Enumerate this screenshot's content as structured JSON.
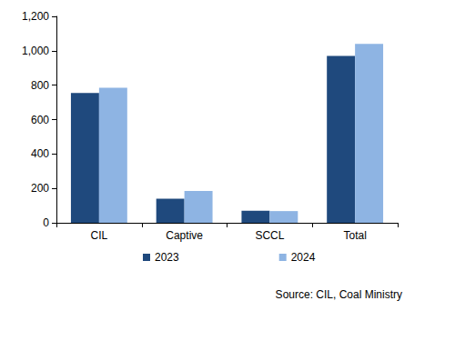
{
  "chart_data": {
    "type": "bar",
    "categories": [
      "CIL",
      "Captive",
      "SCCL",
      "Total"
    ],
    "series": [
      {
        "name": "2023",
        "color": "#1f497d",
        "values": [
          755,
          140,
          70,
          970
        ]
      },
      {
        "name": "2024",
        "color": "#8eb4e3",
        "values": [
          785,
          185,
          68,
          1040
        ]
      }
    ],
    "ylim": [
      0,
      1200
    ],
    "yticks": [
      0,
      200,
      400,
      600,
      800,
      {
        "value": 1000,
        "label": "1,000"
      },
      {
        "value": 1200,
        "label": "1,200"
      }
    ],
    "grid": false,
    "legend": "bottom",
    "annotation": "Source: CIL, Coal Ministry"
  }
}
